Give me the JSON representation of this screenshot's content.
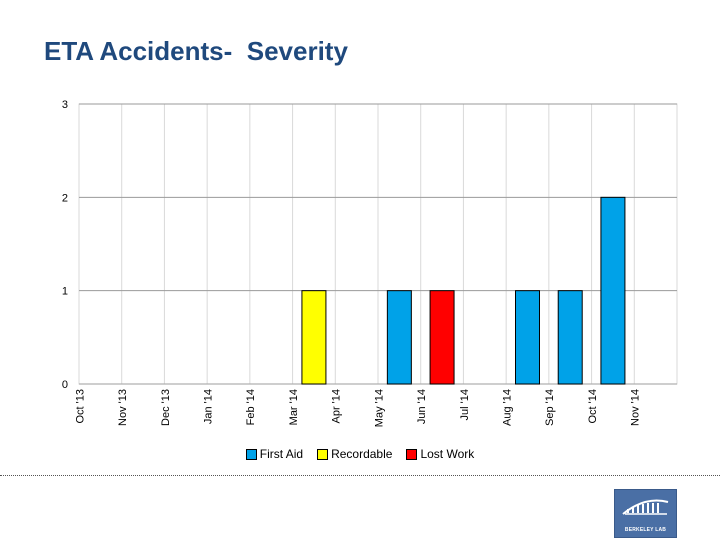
{
  "slide": {
    "title": "ETA Accidents-  Severity",
    "logo_text": "BERKELEY LAB"
  },
  "colors": {
    "first_aid": "#00a2e8",
    "recordable": "#ffff00",
    "lost_work": "#ff0000",
    "title": "#1f497d"
  },
  "chart_data": {
    "type": "bar",
    "title": "ETA Accidents-  Severity",
    "xlabel": "",
    "ylabel": "",
    "ylim": [
      0,
      3
    ],
    "yticks": [
      "0",
      "1",
      "2",
      "3"
    ],
    "grid": true,
    "stacked": true,
    "legend_position": "bottom",
    "categories": [
      "Oct '13",
      "Nov '13",
      "Dec '13",
      "Jan '14",
      "Feb '14",
      "Mar '14",
      "Apr '14",
      "May '14",
      "Jun '14",
      "Jul '14",
      "Aug '14",
      "Sep '14",
      "Oct '14",
      "Nov '14"
    ],
    "series": [
      {
        "name": "First Aid",
        "color": "#00a2e8",
        "values": [
          0,
          0,
          0,
          0,
          0,
          0,
          0,
          1,
          0,
          0,
          1,
          1,
          2,
          0
        ]
      },
      {
        "name": "Recordable",
        "color": "#ffff00",
        "values": [
          0,
          0,
          0,
          0,
          0,
          1,
          0,
          0,
          0,
          0,
          0,
          0,
          0,
          0
        ]
      },
      {
        "name": "Lost Work",
        "color": "#ff0000",
        "values": [
          0,
          0,
          0,
          0,
          0,
          0,
          0,
          0,
          1,
          0,
          0,
          0,
          0,
          0
        ]
      }
    ]
  }
}
